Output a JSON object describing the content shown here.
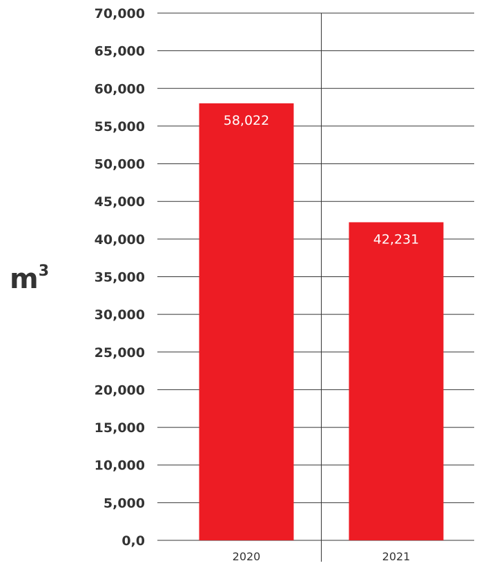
{
  "chart_data": {
    "type": "bar",
    "categories": [
      "2020",
      "2021"
    ],
    "values": [
      58022,
      42231
    ],
    "data_labels": [
      "58,022",
      "42,231"
    ],
    "title": "",
    "xlabel": "",
    "ylabel": "m",
    "ylabel_superscript": "3",
    "ylim": [
      0,
      70000
    ],
    "yticks": [
      0,
      5000,
      10000,
      15000,
      20000,
      25000,
      30000,
      35000,
      40000,
      45000,
      50000,
      55000,
      60000,
      65000,
      70000
    ],
    "ytick_labels": [
      "0,0",
      "5,000",
      "10,000",
      "15,000",
      "20,000",
      "25,000",
      "30,000",
      "35,000",
      "40,000",
      "45,000",
      "50,000",
      "55,000",
      "60,000",
      "65,000",
      "70,000"
    ],
    "grid": true,
    "bar_color": "#ed1c24",
    "grid_color": "#333333"
  }
}
